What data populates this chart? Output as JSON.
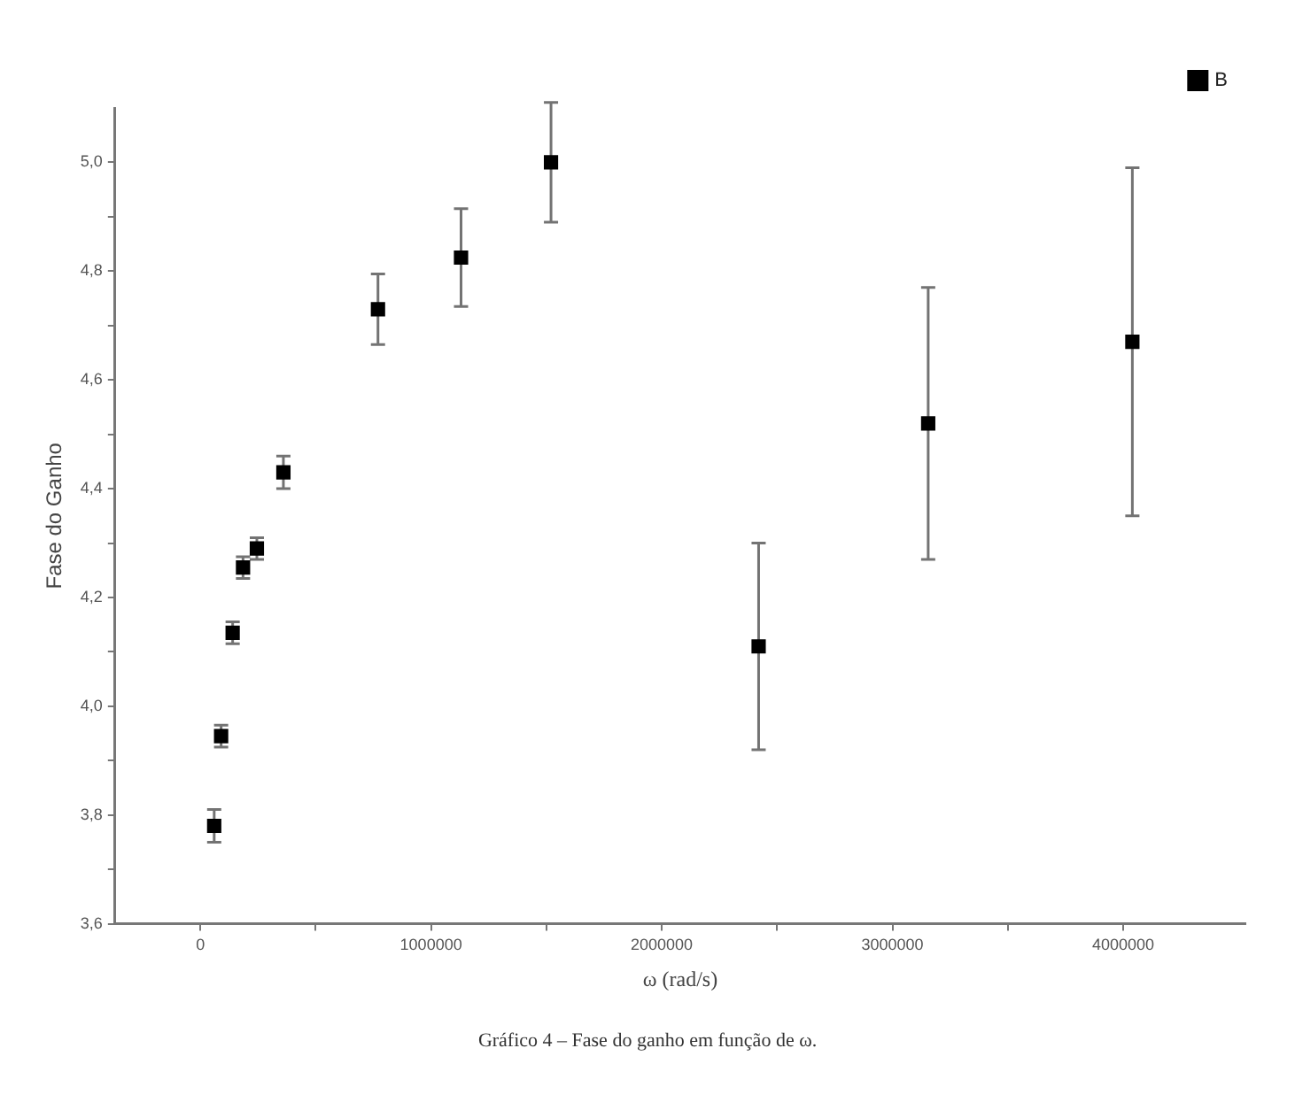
{
  "chart_data": {
    "type": "scatter",
    "xlabel": "ω (rad/s)",
    "ylabel": "Fase do Ganho",
    "annotations": [
      "Gráfico 4 – Fase do ganho em função de ω."
    ],
    "series": [
      {
        "name": "B",
        "color": "#000000",
        "x": [
          60000,
          90000,
          140000,
          185000,
          245000,
          360000,
          770000,
          1130000,
          1520000,
          2420000,
          3155000,
          4040000
        ],
        "values": [
          3.78,
          3.945,
          4.135,
          4.255,
          4.29,
          4.43,
          4.73,
          4.825,
          5.0,
          4.11,
          4.52,
          4.67
        ],
        "errors": [
          0.03,
          0.02,
          0.02,
          0.02,
          0.02,
          0.03,
          0.065,
          0.09,
          0.11,
          0.19,
          0.25,
          0.32
        ]
      }
    ],
    "xlim": [
      -370000,
      4530000
    ],
    "xticks": [
      0,
      {
        "value": 500000,
        "label": null
      },
      1000000,
      {
        "value": 1500000,
        "label": null
      },
      2000000,
      {
        "value": 2500000,
        "label": null
      },
      3000000,
      {
        "value": 3500000,
        "label": null
      },
      4000000
    ],
    "ylim": [
      3.6,
      5.1
    ],
    "yticks": [
      {
        "value": 3.6,
        "label": "3,6"
      },
      {
        "value": 3.7,
        "label": null
      },
      {
        "value": 3.8,
        "label": "3,8"
      },
      {
        "value": 3.9,
        "label": null
      },
      {
        "value": 4.0,
        "label": "4,0"
      },
      {
        "value": 4.1,
        "label": null
      },
      {
        "value": 4.2,
        "label": "4,2"
      },
      {
        "value": 4.3,
        "label": null
      },
      {
        "value": 4.4,
        "label": "4,4"
      },
      {
        "value": 4.5,
        "label": null
      },
      {
        "value": 4.6,
        "label": "4,6"
      },
      {
        "value": 4.7,
        "label": null
      },
      {
        "value": 4.8,
        "label": "4,8"
      },
      {
        "value": 4.9,
        "label": null
      },
      {
        "value": 5.0,
        "label": "5,0"
      }
    ],
    "marker": "square",
    "legend": "top right",
    "grid": false
  }
}
